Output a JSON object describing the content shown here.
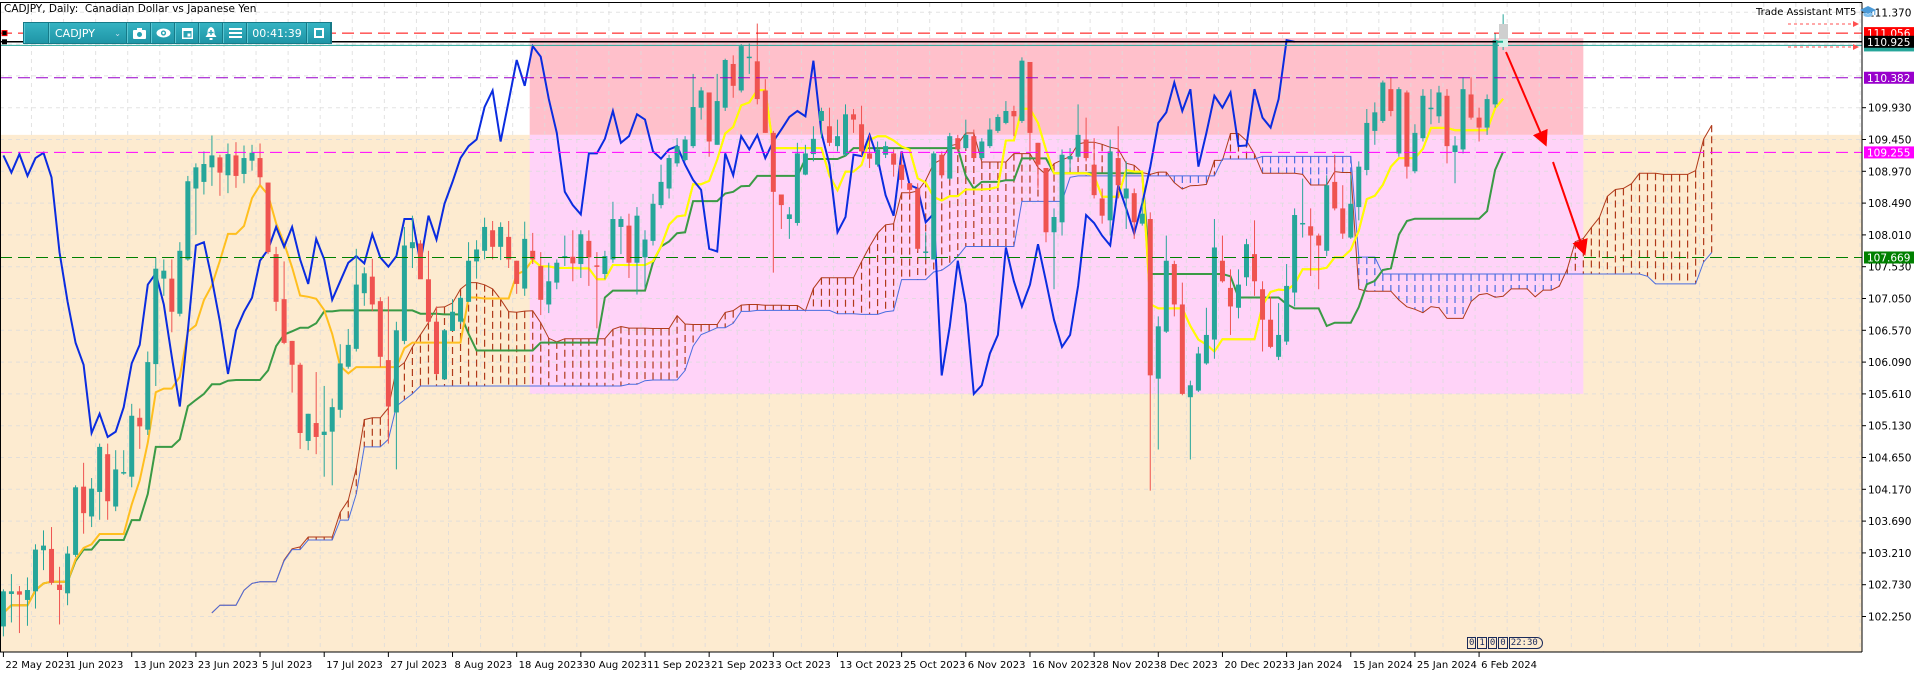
{
  "header": {
    "title": "CADJPY, Daily:  Canadian Dollar vs Japanese Yen"
  },
  "toolbar": {
    "symbol": "CADJPY",
    "timer": "00:41:39",
    "icons": [
      "grip-handle",
      "chevron-down-icon",
      "camera-icon",
      "eye-icon",
      "calendar-icon",
      "alert-bell-icon",
      "menu-icon",
      "restore-window-icon"
    ],
    "color": "#27a3b3"
  },
  "trade_assistant": {
    "label": "Trade Assistant MT5",
    "icon": "graduation-cap-icon"
  },
  "bar_timer": [
    "0",
    "1",
    "0",
    "0",
    "22:30"
  ],
  "chart_data": {
    "type": "candlestick",
    "symbol": "CADJPY",
    "timeframe": "Daily",
    "title": "CADJPY, Daily:  Canadian Dollar vs Japanese Yen",
    "ylim": [
      101.71,
      111.51
    ],
    "grid": true,
    "colors": {
      "bull": "#26a69a",
      "bear": "#ef5350",
      "tenkan": "#ffbf1f",
      "tenkan_in_zone": "#ffff00",
      "kijun": "#3a9a45",
      "chikou": "#0a2ce0",
      "span_a": "#b03a1a",
      "span_b": "#4a6ee0"
    },
    "ichimoku": {
      "tenkan": 9,
      "kijun": 26,
      "senkou_b": 52
    },
    "x_labels": [
      "22 May 2023",
      "1 Jun 2023",
      "13 Jun 2023",
      "23 Jun 2023",
      "5 Jul 2023",
      "17 Jul 2023",
      "27 Jul 2023",
      "8 Aug 2023",
      "18 Aug 2023",
      "30 Aug 2023",
      "11 Sep 2023",
      "21 Sep 2023",
      "3 Oct 2023",
      "13 Oct 2023",
      "25 Oct 2023",
      "6 Nov 2023",
      "16 Nov 2023",
      "28 Nov 2023",
      "8 Dec 2023",
      "20 Dec 2023",
      "3 Jan 2024",
      "15 Jan 2024",
      "25 Jan 2024",
      "6 Feb 2024"
    ],
    "y_ticks": [
      "111.370",
      "109.930",
      "109.450",
      "108.970",
      "108.490",
      "108.010",
      "107.530",
      "107.050",
      "106.570",
      "106.090",
      "105.610",
      "105.130",
      "104.650",
      "104.170",
      "103.690",
      "103.210",
      "102.730",
      "102.250"
    ],
    "price_lines": [
      {
        "price": 111.056,
        "label": "111.056",
        "color": "#ff0000",
        "style": "dashed"
      },
      {
        "price": 110.925,
        "label": "110.925",
        "color": "#000000",
        "style": "solid"
      },
      {
        "price": 110.87,
        "color": "#26a69a",
        "style": "solid"
      },
      {
        "price": 110.382,
        "label": "110.382",
        "color": "#9900cc",
        "style": "dashed"
      },
      {
        "price": 109.255,
        "label": "109.255",
        "color": "#ff00ff",
        "style": "dashed"
      },
      {
        "price": 107.669,
        "label": "107.669",
        "color": "#008000",
        "style": "dashed"
      }
    ],
    "zones": [
      {
        "from": "2023-05-22",
        "to": "2024-03-29",
        "top": 109.52,
        "bottom": 101.71,
        "color": "#fdebd0"
      },
      {
        "from": "2023-08-21",
        "to": "2024-02-21",
        "top": 110.98,
        "bottom": 109.52,
        "color": "#ffc0cb"
      },
      {
        "from": "2023-08-21",
        "to": "2024-02-21",
        "top": 109.52,
        "bottom": 105.61,
        "color": "#ffd3f8"
      }
    ],
    "candles": [
      [
        102.1,
        102.66,
        101.95,
        102.63
      ],
      [
        102.59,
        102.89,
        102.16,
        102.63
      ],
      [
        102.63,
        102.71,
        102.0,
        102.58
      ],
      [
        102.5,
        102.84,
        102.11,
        102.65
      ],
      [
        102.63,
        103.34,
        102.37,
        103.26
      ],
      [
        103.25,
        103.55,
        102.95,
        103.32
      ],
      [
        103.27,
        103.6,
        102.73,
        102.76
      ],
      [
        102.73,
        103.0,
        102.13,
        102.65
      ],
      [
        102.6,
        103.31,
        102.42,
        103.2
      ],
      [
        103.18,
        104.23,
        103.15,
        104.2
      ],
      [
        104.21,
        104.57,
        103.5,
        103.81
      ],
      [
        103.76,
        104.34,
        103.6,
        104.18
      ],
      [
        104.13,
        104.86,
        103.71,
        104.81
      ],
      [
        104.7,
        104.86,
        103.71,
        103.99
      ],
      [
        103.91,
        104.76,
        103.84,
        104.47
      ],
      [
        104.41,
        104.76,
        104.39,
        104.43
      ],
      [
        104.36,
        105.46,
        104.2,
        105.28
      ],
      [
        105.25,
        105.39,
        104.78,
        105.12
      ],
      [
        105.07,
        106.25,
        104.99,
        106.09
      ],
      [
        106.06,
        107.67,
        105.73,
        107.5
      ],
      [
        107.35,
        107.64,
        107.09,
        107.47
      ],
      [
        107.35,
        107.64,
        106.54,
        106.85
      ],
      [
        106.82,
        107.9,
        106.78,
        107.77
      ],
      [
        107.64,
        108.9,
        107.62,
        108.82
      ],
      [
        108.71,
        109.09,
        108.01,
        109.03
      ],
      [
        108.81,
        109.27,
        108.62,
        109.08
      ],
      [
        109.03,
        109.51,
        108.75,
        109.21
      ],
      [
        109.18,
        109.22,
        108.6,
        108.95
      ],
      [
        108.91,
        109.39,
        108.64,
        109.23
      ],
      [
        109.21,
        109.41,
        108.72,
        108.9
      ],
      [
        108.93,
        109.36,
        108.79,
        109.17
      ],
      [
        109.13,
        109.37,
        108.98,
        109.25
      ],
      [
        109.17,
        109.39,
        108.77,
        108.88
      ],
      [
        108.8,
        108.8,
        107.72,
        107.75
      ],
      [
        107.72,
        107.83,
        106.86,
        107.0
      ],
      [
        107.04,
        107.61,
        106.36,
        106.38
      ],
      [
        106.41,
        106.41,
        105.63,
        106.05
      ],
      [
        106.05,
        106.08,
        104.78,
        105.02
      ],
      [
        104.9,
        105.31,
        104.76,
        105.31
      ],
      [
        105.17,
        105.94,
        104.7,
        104.96
      ],
      [
        104.99,
        105.73,
        104.36,
        105.04
      ],
      [
        105.04,
        105.54,
        104.23,
        105.41
      ],
      [
        105.37,
        106.36,
        105.25,
        106.07
      ],
      [
        106.02,
        106.59,
        105.99,
        106.35
      ],
      [
        106.29,
        107.8,
        106.25,
        107.26
      ],
      [
        107.13,
        107.52,
        106.94,
        107.43
      ],
      [
        107.38,
        107.65,
        106.86,
        106.96
      ],
      [
        107.01,
        107.07,
        106.02,
        106.17
      ],
      [
        106.12,
        107.08,
        104.86,
        105.42
      ],
      [
        105.33,
        106.7,
        104.47,
        106.57
      ],
      [
        106.41,
        108.13,
        106.36,
        107.85
      ],
      [
        107.81,
        108.3,
        107.51,
        107.9
      ],
      [
        107.88,
        107.93,
        107.35,
        107.34
      ],
      [
        107.34,
        107.77,
        106.67,
        106.7
      ],
      [
        106.7,
        106.93,
        105.89,
        105.91
      ],
      [
        105.83,
        106.59,
        105.83,
        106.57
      ],
      [
        106.56,
        107.04,
        106.56,
        106.85
      ],
      [
        106.7,
        107.09,
        106.67,
        107.06
      ],
      [
        107.0,
        107.9,
        107.0,
        107.62
      ],
      [
        107.61,
        107.93,
        107.35,
        107.79
      ],
      [
        107.77,
        108.27,
        107.64,
        108.13
      ],
      [
        108.08,
        108.22,
        107.64,
        107.83
      ],
      [
        107.83,
        108.2,
        107.63,
        108.13
      ],
      [
        107.98,
        108.22,
        107.51,
        107.64
      ],
      [
        107.62,
        107.62,
        107.12,
        107.27
      ],
      [
        107.2,
        108.21,
        107.09,
        107.95
      ],
      [
        107.77,
        108.04,
        107.57,
        107.64
      ],
      [
        107.54,
        107.75,
        106.8,
        107.03
      ],
      [
        106.96,
        107.59,
        106.83,
        107.31
      ],
      [
        107.29,
        107.64,
        107.19,
        107.59
      ],
      [
        107.66,
        108.0,
        107.54,
        107.69
      ],
      [
        107.68,
        108.08,
        107.31,
        107.58
      ],
      [
        107.57,
        108.08,
        107.36,
        108.02
      ],
      [
        107.92,
        108.08,
        107.24,
        107.67
      ],
      [
        107.55,
        107.75,
        106.6,
        107.53
      ],
      [
        107.42,
        107.77,
        107.34,
        107.69
      ],
      [
        107.64,
        108.51,
        107.59,
        108.25
      ],
      [
        108.13,
        108.29,
        107.72,
        108.25
      ],
      [
        108.15,
        108.33,
        107.36,
        107.59
      ],
      [
        107.59,
        108.43,
        107.11,
        108.3
      ],
      [
        107.67,
        108.08,
        107.21,
        107.94
      ],
      [
        107.92,
        108.63,
        107.85,
        108.48
      ],
      [
        108.46,
        109.07,
        108.41,
        108.81
      ],
      [
        108.71,
        109.22,
        108.56,
        109.17
      ],
      [
        109.09,
        109.47,
        109.04,
        109.35
      ],
      [
        109.14,
        109.5,
        109.12,
        109.45
      ],
      [
        109.35,
        110.44,
        109.32,
        109.94
      ],
      [
        109.93,
        110.24,
        109.75,
        110.19
      ],
      [
        110.16,
        110.16,
        109.19,
        109.42
      ],
      [
        109.37,
        110.44,
        109.37,
        110.03
      ],
      [
        109.93,
        110.67,
        109.88,
        110.65
      ],
      [
        110.59,
        110.72,
        110.08,
        110.26
      ],
      [
        110.19,
        110.89,
        110.16,
        110.86
      ],
      [
        110.68,
        110.9,
        110.44,
        110.7
      ],
      [
        110.63,
        111.2,
        109.98,
        110.06
      ],
      [
        110.19,
        110.36,
        109.55,
        109.55
      ],
      [
        109.55,
        109.58,
        107.44,
        108.66
      ],
      [
        108.62,
        108.62,
        108.1,
        108.46
      ],
      [
        108.25,
        108.43,
        107.95,
        108.32
      ],
      [
        108.19,
        109.4,
        108.15,
        109.24
      ],
      [
        108.92,
        109.37,
        108.91,
        109.24
      ],
      [
        109.23,
        109.65,
        109.12,
        109.46
      ],
      [
        109.73,
        109.93,
        109.47,
        109.88
      ],
      [
        109.65,
        109.93,
        109.35,
        109.4
      ],
      [
        109.35,
        109.75,
        109.27,
        109.5
      ],
      [
        109.22,
        109.98,
        109.2,
        109.83
      ],
      [
        109.83,
        109.91,
        109.55,
        109.75
      ],
      [
        109.68,
        109.96,
        109.2,
        109.27
      ],
      [
        109.24,
        109.52,
        109.02,
        109.16
      ],
      [
        109.07,
        109.42,
        109.04,
        109.3
      ],
      [
        109.22,
        109.42,
        109.17,
        109.35
      ],
      [
        109.24,
        109.3,
        108.89,
        109.07
      ],
      [
        109.07,
        109.27,
        108.71,
        108.84
      ],
      [
        108.79,
        108.79,
        108.61,
        108.69
      ],
      [
        108.71,
        108.79,
        107.77,
        107.8
      ],
      [
        107.74,
        108.05,
        107.64,
        107.76
      ],
      [
        107.64,
        109.27,
        107.64,
        109.24
      ],
      [
        109.22,
        109.27,
        108.86,
        108.91
      ],
      [
        108.86,
        109.55,
        108.84,
        109.5
      ],
      [
        109.47,
        109.52,
        109.27,
        109.3
      ],
      [
        109.32,
        109.75,
        109.3,
        109.52
      ],
      [
        109.5,
        109.6,
        109.14,
        109.17
      ],
      [
        109.17,
        109.47,
        109.14,
        109.42
      ],
      [
        109.35,
        109.77,
        109.32,
        109.6
      ],
      [
        109.58,
        109.83,
        109.55,
        109.79
      ],
      [
        109.7,
        110.03,
        109.68,
        109.88
      ],
      [
        109.88,
        109.96,
        109.5,
        109.8
      ],
      [
        109.73,
        110.69,
        109.7,
        110.64
      ],
      [
        110.62,
        110.62,
        109.27,
        109.55
      ],
      [
        109.4,
        109.4,
        108.71,
        109.07
      ],
      [
        109.02,
        109.02,
        107.9,
        108.05
      ],
      [
        108.05,
        108.41,
        107.19,
        108.28
      ],
      [
        108.2,
        109.3,
        108.0,
        109.22
      ],
      [
        109.15,
        109.32,
        108.97,
        109.2
      ],
      [
        109.19,
        109.98,
        109.17,
        109.52
      ],
      [
        109.45,
        109.78,
        109.12,
        109.17
      ],
      [
        109.07,
        109.47,
        108.56,
        108.61
      ],
      [
        108.56,
        108.71,
        108.18,
        108.3
      ],
      [
        108.23,
        109.45,
        108.0,
        109.27
      ],
      [
        109.17,
        109.65,
        108.56,
        108.76
      ],
      [
        108.56,
        109.12,
        108.1,
        108.71
      ],
      [
        108.64,
        108.71,
        107.95,
        108.2
      ],
      [
        108.18,
        108.56,
        108.15,
        108.33
      ],
      [
        108.25,
        108.35,
        104.15,
        105.89
      ],
      [
        105.84,
        106.78,
        104.77,
        106.63
      ],
      [
        106.55,
        108.0,
        106.53,
        107.62
      ],
      [
        107.57,
        107.62,
        106.78,
        106.96
      ],
      [
        106.96,
        107.29,
        105.59,
        105.61
      ],
      [
        105.56,
        105.81,
        104.62,
        105.74
      ],
      [
        105.66,
        106.32,
        105.64,
        106.22
      ],
      [
        106.07,
        106.91,
        106.05,
        106.5
      ],
      [
        106.43,
        108.25,
        106.14,
        107.82
      ],
      [
        107.62,
        108.0,
        107.29,
        107.31
      ],
      [
        107.21,
        107.49,
        106.5,
        106.93
      ],
      [
        106.91,
        107.49,
        106.75,
        107.26
      ],
      [
        107.37,
        107.95,
        107.24,
        107.87
      ],
      [
        107.72,
        108.23,
        107.09,
        107.31
      ],
      [
        107.19,
        107.31,
        106.25,
        106.73
      ],
      [
        106.73,
        107.08,
        106.3,
        106.32
      ],
      [
        106.17,
        106.98,
        106.12,
        106.5
      ],
      [
        106.4,
        107.57,
        106.35,
        107.24
      ],
      [
        107.14,
        108.41,
        106.93,
        108.31
      ],
      [
        108.17,
        108.86,
        107.97,
        108.19
      ],
      [
        108.14,
        108.41,
        107.39,
        108.0
      ],
      [
        108.0,
        108.03,
        107.19,
        107.85
      ],
      [
        107.77,
        108.91,
        107.69,
        108.76
      ],
      [
        108.81,
        109.22,
        108.38,
        108.41
      ],
      [
        108.41,
        108.76,
        107.95,
        108.03
      ],
      [
        107.97,
        108.91,
        107.95,
        108.48
      ],
      [
        108.43,
        109.12,
        108.23,
        109.04
      ],
      [
        108.99,
        109.91,
        108.91,
        109.7
      ],
      [
        109.58,
        110.01,
        109.37,
        109.86
      ],
      [
        109.73,
        110.34,
        109.7,
        110.31
      ],
      [
        110.21,
        110.39,
        109.8,
        109.88
      ],
      [
        109.24,
        110.24,
        109.19,
        110.21
      ],
      [
        110.16,
        110.19,
        108.86,
        109.04
      ],
      [
        108.97,
        109.68,
        108.94,
        109.55
      ],
      [
        109.47,
        110.21,
        109.42,
        110.11
      ],
      [
        109.91,
        110.21,
        109.68,
        109.93
      ],
      [
        109.8,
        110.26,
        109.7,
        110.16
      ],
      [
        110.11,
        110.21,
        109.09,
        109.35
      ],
      [
        109.26,
        109.5,
        108.79,
        109.36
      ],
      [
        109.3,
        110.39,
        109.24,
        110.21
      ],
      [
        110.13,
        110.39,
        109.75,
        109.78
      ],
      [
        109.78,
        109.93,
        109.42,
        109.63
      ],
      [
        109.63,
        110.13,
        109.52,
        110.06
      ],
      [
        109.98,
        111.05,
        109.93,
        110.95
      ],
      [
        110.88,
        111.34,
        110.8,
        110.925
      ]
    ]
  }
}
